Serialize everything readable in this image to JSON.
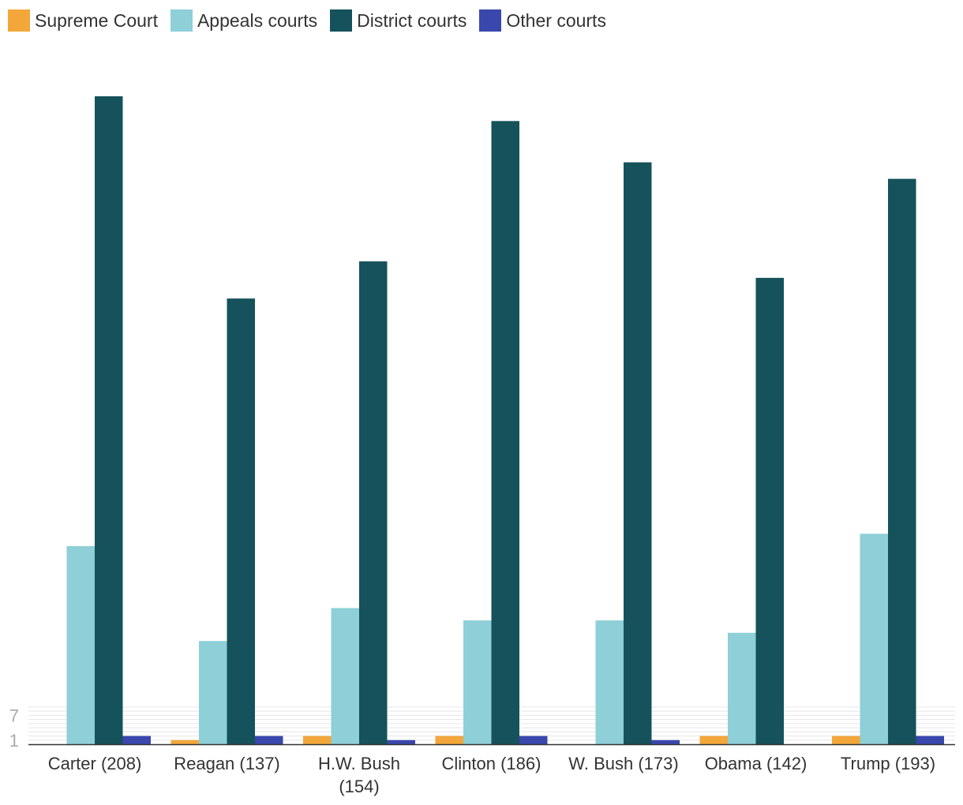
{
  "chart_data": {
    "type": "bar",
    "title": "",
    "xlabel": "",
    "ylabel": "",
    "categories": [
      "Carter (208)",
      "Reagan (137)",
      "H.W. Bush (154)",
      "Clinton (186)",
      "W. Bush (173)",
      "Obama (142)",
      "Trump (193)"
    ],
    "category_lines": [
      [
        "Carter (208)"
      ],
      [
        "Reagan (137)"
      ],
      [
        "H.W. Bush",
        "(154)"
      ],
      [
        "Clinton (186)"
      ],
      [
        "W. Bush (173)"
      ],
      [
        "Obama (142)"
      ],
      [
        "Trump (193)"
      ]
    ],
    "series": [
      {
        "name": "Supreme Court",
        "color": "#f3a73b",
        "values": [
          0,
          1,
          2,
          2,
          0,
          2,
          2
        ]
      },
      {
        "name": "Appeals courts",
        "color": "#8ecfd8",
        "values": [
          48,
          25,
          33,
          30,
          30,
          27,
          51
        ]
      },
      {
        "name": "District courts",
        "color": "#15525b",
        "values": [
          157,
          108,
          117,
          151,
          141,
          113,
          137
        ]
      },
      {
        "name": "Other courts",
        "color": "#3a47ad",
        "values": [
          2,
          2,
          1,
          2,
          1,
          0,
          2
        ]
      }
    ],
    "yticks": [
      1,
      7
    ],
    "ylim": [
      0,
      157
    ],
    "grid": true,
    "legend": "top-left"
  }
}
